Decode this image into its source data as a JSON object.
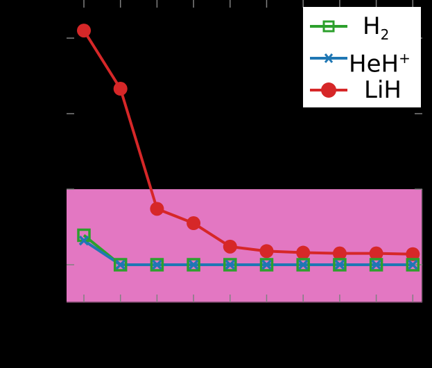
{
  "chart_data": {
    "type": "line",
    "title": "",
    "xlabel": "",
    "ylabel": "",
    "x": [
      1,
      2,
      3,
      4,
      5,
      6,
      7,
      8,
      9,
      10
    ],
    "x_tick_labels_visible": false,
    "y_ticks": [
      0,
      1,
      2,
      3
    ],
    "y_tick_labels_visible": false,
    "ylim": [
      -0.5,
      3.5
    ],
    "xlim": [
      0.5,
      10.3
    ],
    "grid": false,
    "legend_position": "upper right",
    "highlight_band": {
      "ymin": -0.5,
      "ymax": 1.0,
      "color": "#e377c2"
    },
    "series": [
      {
        "name": "H2",
        "label_main": "H",
        "label_sub": "2",
        "color": "#2ca02c",
        "marker": "open-square",
        "values": [
          0.39,
          0,
          0,
          0,
          0,
          0,
          0,
          0,
          0,
          0
        ]
      },
      {
        "name": "HeH+",
        "label_main": "HeH",
        "label_sup": "+",
        "color": "#1f77b4",
        "marker": "x",
        "values": [
          0.32,
          0,
          0,
          0,
          0,
          0,
          0,
          0,
          0,
          0
        ]
      },
      {
        "name": "LiH",
        "label_main": "LiH",
        "color": "#d62728",
        "marker": "filled-circle",
        "values": [
          3.1,
          2.33,
          0.74,
          0.55,
          0.24,
          0.18,
          0.16,
          0.15,
          0.15,
          0.14
        ]
      }
    ]
  },
  "colors": {
    "background": "#000000",
    "band": "#e377c2",
    "tick": "#808080",
    "legend_bg": "#ffffff"
  }
}
